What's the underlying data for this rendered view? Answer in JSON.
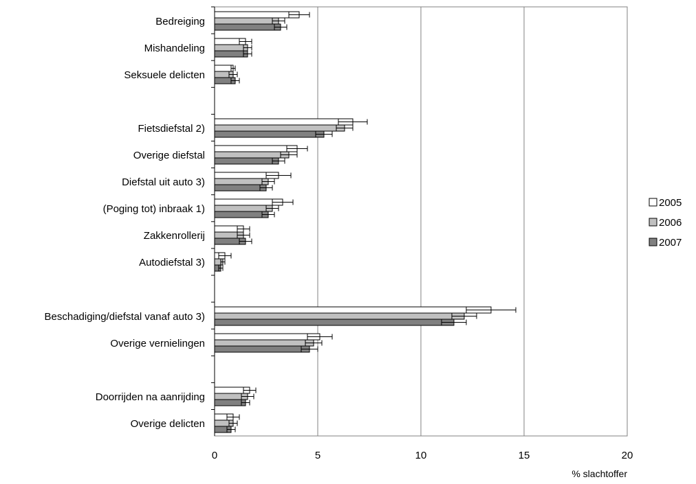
{
  "chart_data": {
    "type": "bar",
    "orientation": "horizontal",
    "xlabel": "% slachtoffer",
    "xlim": [
      0,
      20
    ],
    "xticks": [
      "0",
      "5",
      "10",
      "15",
      "20"
    ],
    "grid": "vertical",
    "legend_position": "right",
    "groups": [
      [
        "Bedreiging",
        "Mishandeling",
        "Seksuele delicten"
      ],
      [
        "Fietsdiefstal 2)",
        "Overige diefstal",
        "Diefstal uit auto 3)",
        "(Poging tot) inbraak 1)",
        "Zakkenrollerij",
        "Autodiefstal 3)"
      ],
      [
        "Beschadiging/diefstal vanaf auto 3)",
        "Overige vernielingen"
      ],
      [
        "Doorrijden na aanrijding",
        "Overige delicten"
      ]
    ],
    "categories": [
      "Bedreiging",
      "Mishandeling",
      "Seksuele delicten",
      "Fietsdiefstal 2)",
      "Overige diefstal",
      "Diefstal uit auto 3)",
      "(Poging tot) inbraak 1)",
      "Zakkenrollerij",
      "Autodiefstal 3)",
      "Beschadiging/diefstal vanaf auto 3)",
      "Overige vernielingen",
      "Doorrijden na aanrijding",
      "Overige delicten"
    ],
    "series": [
      {
        "name": "2005",
        "color": "#ffffff",
        "values": [
          4.1,
          1.5,
          0.9,
          6.7,
          4.0,
          3.1,
          3.3,
          1.4,
          0.5,
          13.4,
          5.1,
          1.7,
          0.9
        ],
        "errors": [
          0.5,
          0.3,
          0.1,
          0.7,
          0.5,
          0.6,
          0.5,
          0.3,
          0.3,
          1.2,
          0.6,
          0.3,
          0.3
        ]
      },
      {
        "name": "2006",
        "color": "#c0c0c0",
        "values": [
          3.1,
          1.6,
          0.9,
          6.3,
          3.6,
          2.6,
          2.8,
          1.4,
          0.4,
          12.1,
          4.8,
          1.6,
          0.9
        ],
        "errors": [
          0.3,
          0.2,
          0.2,
          0.4,
          0.4,
          0.3,
          0.3,
          0.3,
          0.1,
          0.6,
          0.4,
          0.3,
          0.2
        ]
      },
      {
        "name": "2007",
        "color": "#808080",
        "values": [
          3.2,
          1.6,
          1.0,
          5.3,
          3.1,
          2.5,
          2.6,
          1.5,
          0.3,
          11.6,
          4.6,
          1.5,
          0.8
        ],
        "errors": [
          0.3,
          0.2,
          0.2,
          0.4,
          0.3,
          0.3,
          0.3,
          0.3,
          0.1,
          0.6,
          0.4,
          0.2,
          0.2
        ]
      }
    ]
  }
}
